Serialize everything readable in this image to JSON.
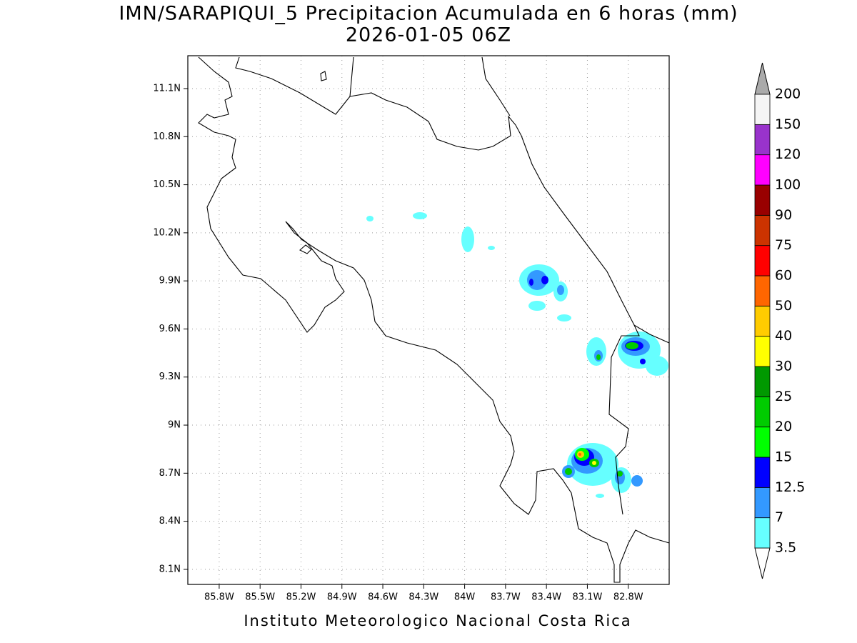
{
  "title": "IMN/SARAPIQUI_5 Precipitacion Acumulada en 6 horas (mm)",
  "subtitle": "2026-01-05 06Z",
  "footer": "Instituto Meteorologico Nacional Costa Rica",
  "map": {
    "lonlim": [
      -86.03,
      -82.5
    ],
    "latlim": [
      8.006,
      11.305
    ],
    "lon_ticks": [
      {
        "value": -85.8,
        "label": "85.8W"
      },
      {
        "value": -85.5,
        "label": "85.5W"
      },
      {
        "value": -85.2,
        "label": "85.2W"
      },
      {
        "value": -84.9,
        "label": "84.9W"
      },
      {
        "value": -84.6,
        "label": "84.6W"
      },
      {
        "value": -84.3,
        "label": "84.3W"
      },
      {
        "value": -84.0,
        "label": "84W"
      },
      {
        "value": -83.7,
        "label": "83.7W"
      },
      {
        "value": -83.4,
        "label": "83.4W"
      },
      {
        "value": -83.1,
        "label": "83.1W"
      },
      {
        "value": -82.8,
        "label": "82.8W"
      }
    ],
    "lat_ticks": [
      {
        "value": 11.1,
        "label": "11.1N"
      },
      {
        "value": 10.8,
        "label": "10.8N"
      },
      {
        "value": 10.5,
        "label": "10.5N"
      },
      {
        "value": 10.2,
        "label": "10.2N"
      },
      {
        "value": 9.9,
        "label": "9.9N"
      },
      {
        "value": 9.6,
        "label": "9.6N"
      },
      {
        "value": 9.3,
        "label": "9.3N"
      },
      {
        "value": 9.0,
        "label": "9N"
      },
      {
        "value": 8.7,
        "label": "8.7N"
      },
      {
        "value": 8.4,
        "label": "8.4N"
      },
      {
        "value": 8.1,
        "label": "8.1N"
      }
    ],
    "grid": true
  },
  "colorbar": {
    "levels": [
      3.5,
      7,
      12.5,
      15,
      20,
      25,
      30,
      40,
      50,
      60,
      75,
      90,
      100,
      120,
      150,
      200
    ],
    "colors": [
      "#66ffff",
      "#3399ff",
      "#0000ff",
      "#00ff00",
      "#00cc00",
      "#009900",
      "#ffff00",
      "#ffcc00",
      "#ff6600",
      "#ff0000",
      "#cc3300",
      "#990000",
      "#ff00ff",
      "#9933cc",
      "#f5f5f5"
    ],
    "under_color": "#ffffff",
    "over_color": "#aaaaaa"
  }
}
